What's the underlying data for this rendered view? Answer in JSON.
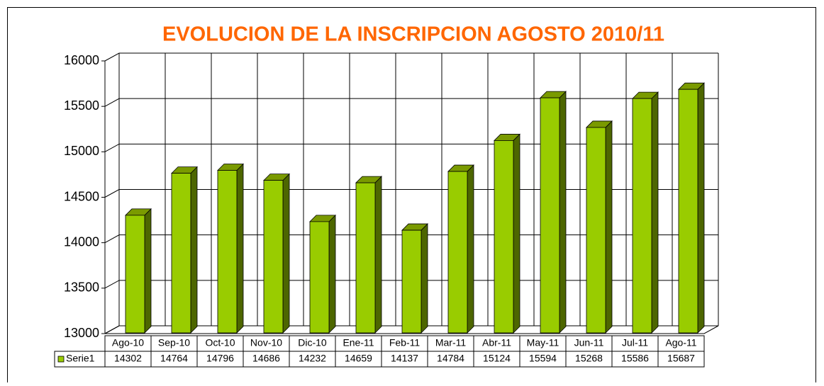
{
  "chart_data": {
    "type": "bar3d",
    "title": "EVOLUCION DE LA INSCRIPCION AGOSTO 2010/11",
    "categories": [
      "Ago-10",
      "Sep-10",
      "Oct-10",
      "Nov-10",
      "Dic-10",
      "Ene-11",
      "Feb-11",
      "Mar-11",
      "Abr-11",
      "May-11",
      "Jun-11",
      "Jul-11",
      "Ago-11"
    ],
    "series": [
      {
        "name": "Serie1",
        "color": "#99cc00",
        "values": [
          14302,
          14764,
          14796,
          14686,
          14232,
          14659,
          14137,
          14784,
          15124,
          15594,
          15268,
          15586,
          15687
        ]
      }
    ],
    "ylim": [
      13000,
      16000
    ],
    "yticks": [
      13000,
      13500,
      14000,
      14500,
      15000,
      15500,
      16000
    ],
    "grid": true
  }
}
